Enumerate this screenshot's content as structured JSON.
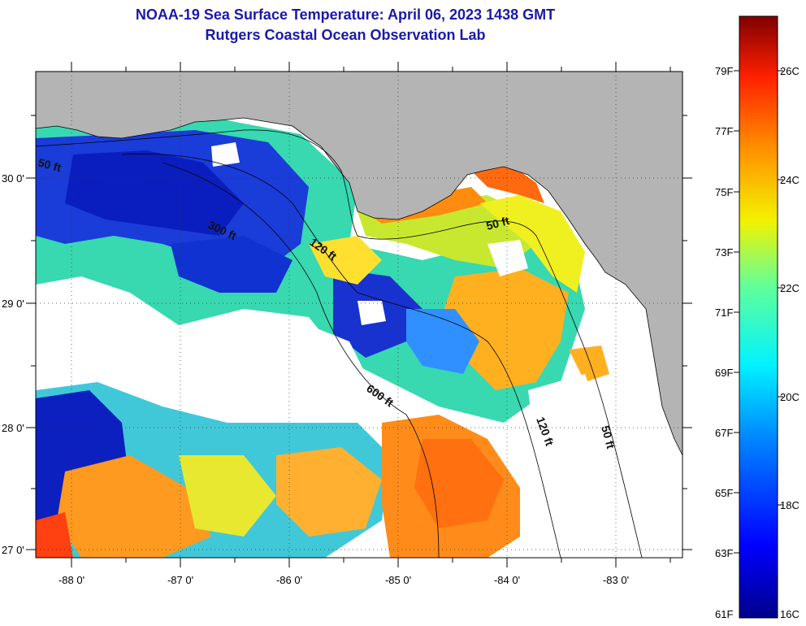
{
  "title_line1": "NOAA-19 Sea Surface Temperature:  April 06, 2023 1438 GMT",
  "title_line2": "Rutgers Coastal Ocean Observation Lab",
  "axes": {
    "lon_labels": [
      "-88 0'",
      "-87 0'",
      "-86 0'",
      "-85 0'",
      "-84 0'",
      "-83 0'"
    ],
    "lat_labels": [
      "30 0'",
      "29 0'",
      "28 0'",
      "27 0'"
    ]
  },
  "contours": [
    "50 ft",
    "300 ft",
    "120 ft",
    "50 ft",
    "600 ft",
    "120 ft",
    "50 ft"
  ],
  "colorbar": {
    "f_labels": [
      "79F",
      "77F",
      "75F",
      "73F",
      "71F",
      "69F",
      "67F",
      "65F",
      "63F",
      "61F"
    ],
    "c_labels": [
      "26C",
      "24C",
      "22C",
      "20C",
      "18C",
      "16C"
    ]
  },
  "colors": {
    "title": "#1a1aa8",
    "land": "#b4b4b4",
    "cloud": "#ffffff"
  }
}
